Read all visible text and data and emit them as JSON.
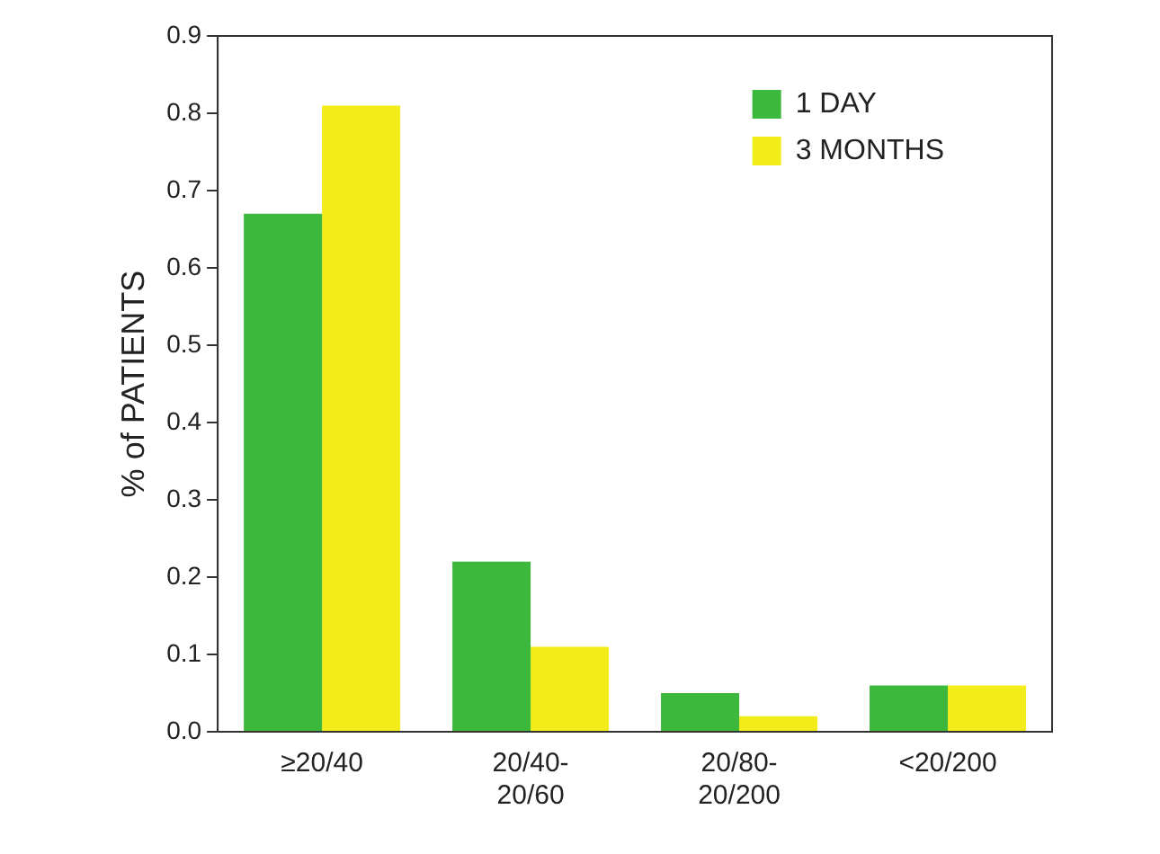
{
  "chart_data": {
    "type": "bar",
    "ylabel": "% of PATIENTS",
    "categories": [
      "≥20/40",
      "20/40-20/60",
      "20/80-20/200",
      "<20/200"
    ],
    "series": [
      {
        "name": "1 DAY",
        "color": "#3cb93c",
        "values": [
          0.67,
          0.22,
          0.05,
          0.06
        ]
      },
      {
        "name": "3 MONTHS",
        "color": "#f2ec1a",
        "values": [
          0.81,
          0.11,
          0.02,
          0.06
        ]
      }
    ],
    "ylim": [
      0,
      0.9
    ],
    "yticks": [
      {
        "value": 0,
        "label": "0.0"
      },
      0.1,
      0.2,
      0.3,
      0.4,
      0.5,
      0.6,
      0.7,
      0.8,
      0.9
    ],
    "grid": false,
    "legend": "top right"
  }
}
